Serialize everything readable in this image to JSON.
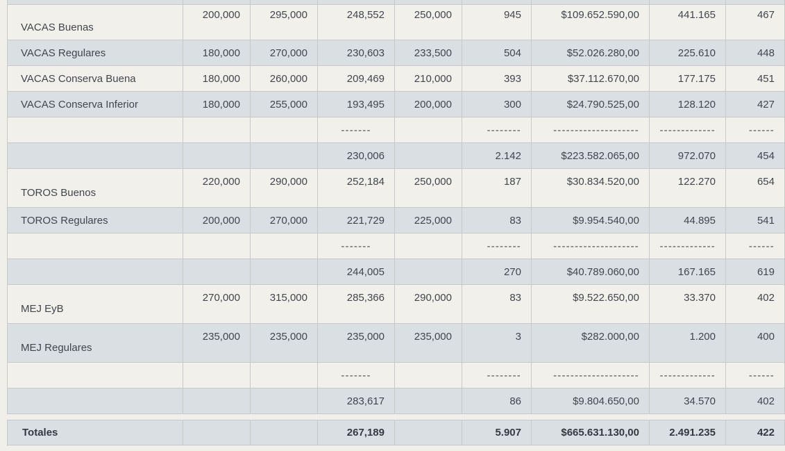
{
  "table": {
    "columns": [
      "category",
      "min_price",
      "max_price",
      "avg_price",
      "frequent_price",
      "count",
      "total_amount",
      "kilos",
      "avg_per_kg"
    ],
    "rows": [
      {
        "kind": "partial",
        "cells": [
          "",
          "",
          "",
          "",
          "",
          "",
          "",
          "",
          ""
        ]
      },
      {
        "kind": "item",
        "variant": "clipped",
        "cells": [
          "VACAS Buenas",
          "200,000",
          "295,000",
          "248,552",
          "250,000",
          "945",
          "$109.652.590,00",
          "441.165",
          "467"
        ]
      },
      {
        "kind": "item",
        "cells": [
          "VACAS Regulares",
          "180,000",
          "270,000",
          "230,603",
          "233,500",
          "504",
          "$52.026.280,00",
          "225.610",
          "448"
        ]
      },
      {
        "kind": "item",
        "cells": [
          "VACAS Conserva Buena",
          "180,000",
          "260,000",
          "209,469",
          "210,000",
          "393",
          "$37.112.670,00",
          "177.175",
          "451"
        ]
      },
      {
        "kind": "item",
        "cells": [
          "VACAS Conserva Inferior",
          "180,000",
          "255,000",
          "193,495",
          "200,000",
          "300",
          "$24.790.525,00",
          "128.120",
          "427"
        ]
      },
      {
        "kind": "dashes",
        "cells": [
          "",
          "",
          "",
          "-------",
          "",
          "--------",
          "--------------------",
          "-------------",
          "------"
        ]
      },
      {
        "kind": "subtotal",
        "cells": [
          "",
          "",
          "",
          "230,006",
          "",
          "2.142",
          "$223.582.065,00",
          "972.070",
          "454"
        ]
      },
      {
        "kind": "item",
        "variant": "tall",
        "cells": [
          "TOROS Buenos",
          "220,000",
          "290,000",
          "252,184",
          "250,000",
          "187",
          "$30.834.520,00",
          "122.270",
          "654"
        ]
      },
      {
        "kind": "item",
        "cells": [
          "TOROS Regulares",
          "200,000",
          "270,000",
          "221,729",
          "225,000",
          "83",
          "$9.954.540,00",
          "44.895",
          "541"
        ]
      },
      {
        "kind": "dashes",
        "cells": [
          "",
          "",
          "",
          "-------",
          "",
          "--------",
          "--------------------",
          "-------------",
          "------"
        ]
      },
      {
        "kind": "subtotal",
        "cells": [
          "",
          "",
          "",
          "244,005",
          "",
          "270",
          "$40.789.060,00",
          "167.165",
          "619"
        ]
      },
      {
        "kind": "item",
        "variant": "tall",
        "cells": [
          "MEJ EyB",
          "270,000",
          "315,000",
          "285,366",
          "290,000",
          "83",
          "$9.522.650,00",
          "33.370",
          "402"
        ]
      },
      {
        "kind": "item",
        "variant": "tall",
        "cells": [
          "MEJ Regulares",
          "235,000",
          "235,000",
          "235,000",
          "235,000",
          "3",
          "$282.000,00",
          "1.200",
          "400"
        ]
      },
      {
        "kind": "dashes",
        "cells": [
          "",
          "",
          "",
          "-------",
          "",
          "--------",
          "--------------------",
          "-------------",
          "------"
        ]
      },
      {
        "kind": "subtotal",
        "cells": [
          "",
          "",
          "",
          "283,617",
          "",
          "86",
          "$9.804.650,00",
          "34.570",
          "402"
        ]
      }
    ],
    "totals": {
      "kind": "totals",
      "cells": [
        "Totales",
        "",
        "",
        "267,189",
        "",
        "5.907",
        "$665.631.130,00",
        "2.491.235",
        "422"
      ]
    }
  },
  "colors": {
    "row_dark": "#dadfe3",
    "row_light": "#f2f0ea",
    "border": "#c7c9c8",
    "text": "#40464d",
    "page_background": "#f0efe9"
  }
}
